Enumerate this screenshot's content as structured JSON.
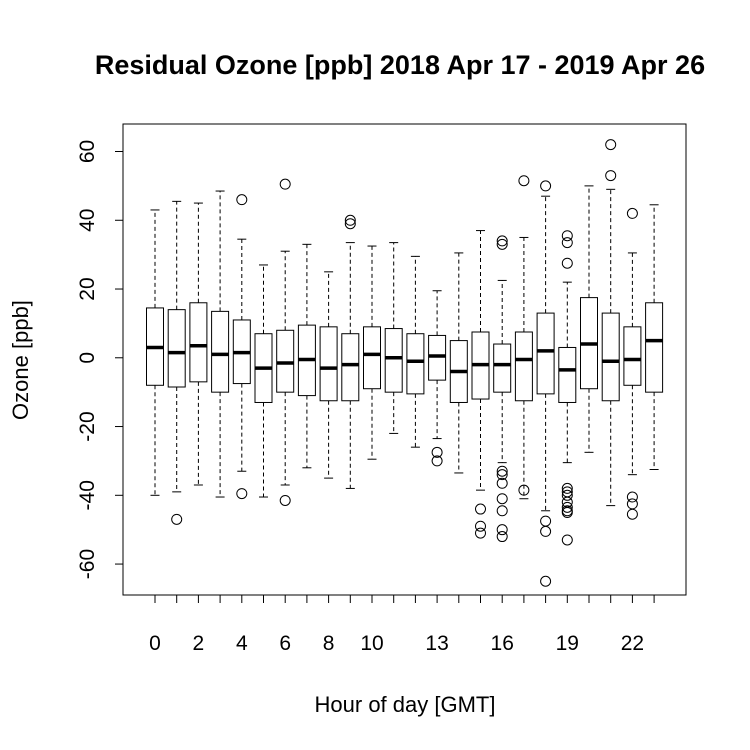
{
  "chart_data": {
    "type": "boxplot",
    "title": "Residual Ozone [ppb] 2018 Apr 17 - 2019 Apr 26",
    "xlabel": "Hour of day [GMT]",
    "ylabel": "Ozone [ppb]",
    "ylim": [
      -69,
      68
    ],
    "y_ticks": [
      -60,
      -40,
      -20,
      0,
      20,
      40,
      60
    ],
    "x_tick_labels": [
      0,
      2,
      4,
      6,
      8,
      10,
      13,
      16,
      19,
      22
    ],
    "grid": false,
    "categories": [
      0,
      1,
      2,
      3,
      4,
      5,
      6,
      7,
      8,
      9,
      10,
      11,
      12,
      13,
      14,
      15,
      16,
      17,
      18,
      19,
      20,
      21,
      22,
      23
    ],
    "boxes": [
      {
        "hour": 0,
        "whisker_low": -40,
        "q1": -8,
        "median": 3,
        "q3": 14.5,
        "whisker_high": 43,
        "outliers": []
      },
      {
        "hour": 1,
        "whisker_low": -39,
        "q1": -8.5,
        "median": 1.5,
        "q3": 14,
        "whisker_high": 45.5,
        "outliers": [
          -47
        ]
      },
      {
        "hour": 2,
        "whisker_low": -37,
        "q1": -7,
        "median": 3.5,
        "q3": 16,
        "whisker_high": 45,
        "outliers": []
      },
      {
        "hour": 3,
        "whisker_low": -40.5,
        "q1": -10,
        "median": 1,
        "q3": 13.5,
        "whisker_high": 48.5,
        "outliers": []
      },
      {
        "hour": 4,
        "whisker_low": -33,
        "q1": -7.5,
        "median": 1.5,
        "q3": 11,
        "whisker_high": 34.5,
        "outliers": [
          46,
          -39.5
        ]
      },
      {
        "hour": 5,
        "whisker_low": -40.5,
        "q1": -13,
        "median": -3,
        "q3": 7,
        "whisker_high": 27,
        "outliers": []
      },
      {
        "hour": 6,
        "whisker_low": -37,
        "q1": -10,
        "median": -1.5,
        "q3": 8,
        "whisker_high": 31,
        "outliers": [
          50.5,
          -41.5
        ]
      },
      {
        "hour": 7,
        "whisker_low": -32,
        "q1": -11,
        "median": -0.5,
        "q3": 9.5,
        "whisker_high": 33,
        "outliers": []
      },
      {
        "hour": 8,
        "whisker_low": -35,
        "q1": -12.5,
        "median": -3,
        "q3": 9,
        "whisker_high": 25,
        "outliers": []
      },
      {
        "hour": 9,
        "whisker_low": -38,
        "q1": -12.5,
        "median": -2,
        "q3": 7,
        "whisker_high": 33.5,
        "outliers": [
          40,
          39
        ]
      },
      {
        "hour": 10,
        "whisker_low": -29.5,
        "q1": -9,
        "median": 1,
        "q3": 9,
        "whisker_high": 32.5,
        "outliers": []
      },
      {
        "hour": 11,
        "whisker_low": -22,
        "q1": -10,
        "median": 0,
        "q3": 8.5,
        "whisker_high": 33.5,
        "outliers": []
      },
      {
        "hour": 12,
        "whisker_low": -26,
        "q1": -10.5,
        "median": -1,
        "q3": 7,
        "whisker_high": 29.5,
        "outliers": []
      },
      {
        "hour": 13,
        "whisker_low": -23.5,
        "q1": -6.5,
        "median": 0.5,
        "q3": 6.5,
        "whisker_high": 19.5,
        "outliers": [
          -27.5,
          -30
        ]
      },
      {
        "hour": 14,
        "whisker_low": -33.5,
        "q1": -13,
        "median": -4,
        "q3": 5,
        "whisker_high": 30.5,
        "outliers": []
      },
      {
        "hour": 15,
        "whisker_low": -38.5,
        "q1": -12,
        "median": -2,
        "q3": 7.5,
        "whisker_high": 37,
        "outliers": [
          -44,
          -49,
          -51
        ]
      },
      {
        "hour": 16,
        "whisker_low": -30.5,
        "q1": -10,
        "median": -2,
        "q3": 4,
        "whisker_high": 22.5,
        "outliers": [
          34,
          33,
          -33,
          -34,
          -36.5,
          -41,
          -44.5,
          -50,
          -52
        ]
      },
      {
        "hour": 17,
        "whisker_low": -41,
        "q1": -12.5,
        "median": -0.5,
        "q3": 7.5,
        "whisker_high": 35,
        "outliers": [
          51.5,
          -38.5
        ]
      },
      {
        "hour": 18,
        "whisker_low": -44.5,
        "q1": -10.5,
        "median": 2,
        "q3": 13,
        "whisker_high": 47,
        "outliers": [
          50,
          -47.5,
          -50.5,
          -65
        ]
      },
      {
        "hour": 19,
        "whisker_low": -30.5,
        "q1": -13,
        "median": -3.5,
        "q3": 3,
        "whisker_high": 22,
        "outliers": [
          35.5,
          33.5,
          27.5,
          -38,
          -39,
          -40,
          -42,
          -43.5,
          -44.5,
          -45,
          -53
        ]
      },
      {
        "hour": 20,
        "whisker_low": -27.5,
        "q1": -9,
        "median": 4,
        "q3": 17.5,
        "whisker_high": 50,
        "outliers": []
      },
      {
        "hour": 21,
        "whisker_low": -43,
        "q1": -12.5,
        "median": -1,
        "q3": 13,
        "whisker_high": 49,
        "outliers": [
          62,
          53
        ]
      },
      {
        "hour": 22,
        "whisker_low": -34,
        "q1": -8,
        "median": -0.5,
        "q3": 9,
        "whisker_high": 30.5,
        "outliers": [
          42,
          -40.5,
          -42.5,
          -45.5
        ]
      },
      {
        "hour": 23,
        "whisker_low": -32.5,
        "q1": -10,
        "median": 5,
        "q3": 16,
        "whisker_high": 44.5,
        "outliers": []
      }
    ]
  }
}
